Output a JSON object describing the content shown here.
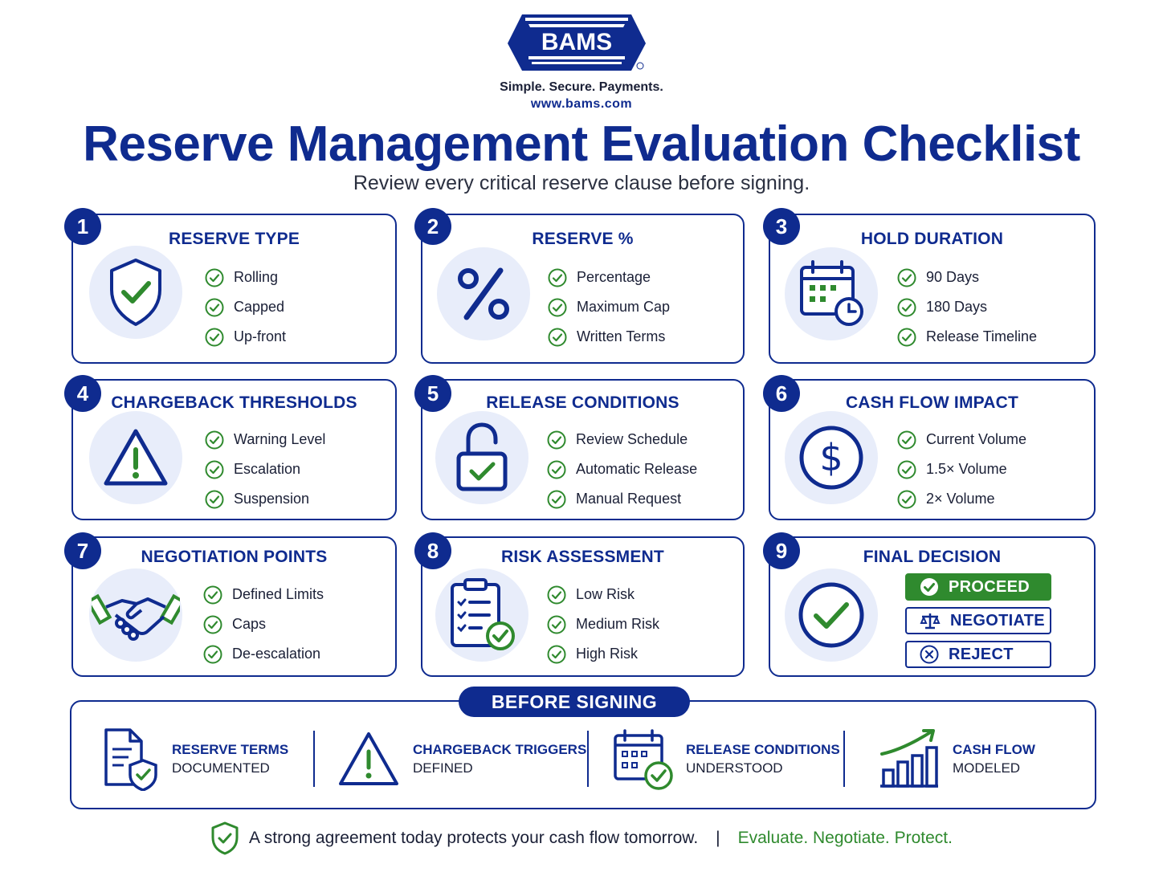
{
  "brand": {
    "logo_text": "BAMS",
    "tagline": "Simple. Secure. Payments.",
    "url": "www.bams.com"
  },
  "title": "Reserve Management Evaluation Checklist",
  "subtitle": "Review every critical reserve clause before signing.",
  "colors": {
    "navy": "#0f2b8f",
    "green": "#2f8a2e",
    "icon_bg": "#e8edfa"
  },
  "cards": [
    {
      "number": "1",
      "title": "RESERVE TYPE",
      "icon": "shield-check-icon",
      "items": [
        "Rolling",
        "Capped",
        "Up-front"
      ]
    },
    {
      "number": "2",
      "title": "RESERVE %",
      "icon": "percent-icon",
      "items": [
        "Percentage",
        "Maximum Cap",
        "Written Terms"
      ]
    },
    {
      "number": "3",
      "title": "HOLD DURATION",
      "icon": "calendar-clock-icon",
      "items": [
        "90 Days",
        "180 Days",
        "Release Timeline"
      ]
    },
    {
      "number": "4",
      "title": "CHARGEBACK THRESHOLDS",
      "icon": "warning-icon",
      "items": [
        "Warning Level",
        "Escalation",
        "Suspension"
      ]
    },
    {
      "number": "5",
      "title": "RELEASE CONDITIONS",
      "icon": "unlocked-padlock-icon",
      "items": [
        "Review Schedule",
        "Automatic Release",
        "Manual Request"
      ]
    },
    {
      "number": "6",
      "title": "CASH FLOW IMPACT",
      "icon": "dollar-icon",
      "items": [
        "Current Volume",
        "1.5× Volume",
        "2× Volume"
      ]
    },
    {
      "number": "7",
      "title": "NEGOTIATION POINTS",
      "icon": "handshake-icon",
      "items": [
        "Defined Limits",
        "Caps",
        "De-escalation"
      ]
    },
    {
      "number": "8",
      "title": "RISK ASSESSMENT",
      "icon": "clipboard-check-icon",
      "items": [
        "Low Risk",
        "Medium Risk",
        "High Risk"
      ]
    },
    {
      "number": "9",
      "title": "FINAL DECISION",
      "icon": "check-circle-icon",
      "items": []
    }
  ],
  "decision": {
    "proceed": "PROCEED",
    "negotiate": "NEGOTIATE",
    "reject": "REJECT"
  },
  "before_signing": {
    "title": "BEFORE SIGNING",
    "items": [
      {
        "line1": "RESERVE TERMS",
        "line2": "DOCUMENTED",
        "icon": "document-shield-icon"
      },
      {
        "line1": "CHARGEBACK TRIGGERS",
        "line2": "DEFINED",
        "icon": "warning-icon"
      },
      {
        "line1": "RELEASE CONDITIONS",
        "line2": "UNDERSTOOD",
        "icon": "calendar-check-icon"
      },
      {
        "line1": "CASH FLOW",
        "line2": "MODELED",
        "icon": "growth-chart-icon"
      }
    ]
  },
  "footer": {
    "message": "A strong agreement today protects your cash flow tomorrow.",
    "separator": "|",
    "motto": "Evaluate. Negotiate. Protect."
  }
}
